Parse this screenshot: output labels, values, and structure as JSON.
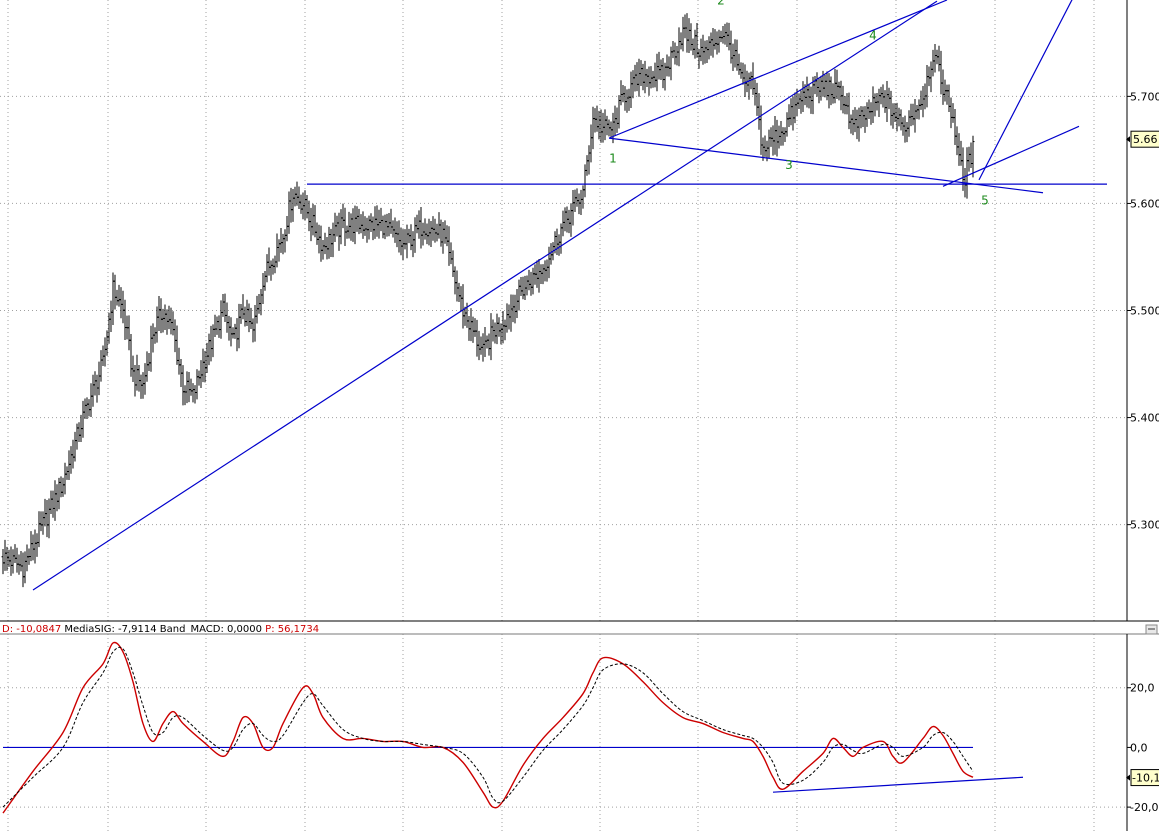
{
  "chart_data": [
    {
      "type": "ohlc",
      "ylim": [
        5.21,
        5.79
      ],
      "y_ticks": [
        5.3,
        5.4,
        5.5,
        5.6,
        5.7
      ],
      "y_tick_labels": [
        "5.300",
        "5.400",
        "5.500",
        "5.600",
        "5.700"
      ],
      "last_value_label": "5.66",
      "last_value": 5.66,
      "grid": true,
      "bar_color": "#000000",
      "line_color": "#0000cc",
      "wave_label_color": "#1c8a1c",
      "anchors": [
        [
          0,
          5.27
        ],
        [
          10,
          5.26
        ],
        [
          20,
          5.3
        ],
        [
          30,
          5.34
        ],
        [
          40,
          5.4
        ],
        [
          50,
          5.45
        ],
        [
          55,
          5.52
        ],
        [
          60,
          5.5
        ],
        [
          65,
          5.44
        ],
        [
          70,
          5.43
        ],
        [
          75,
          5.48
        ],
        [
          80,
          5.5
        ],
        [
          85,
          5.48
        ],
        [
          90,
          5.43
        ],
        [
          95,
          5.42
        ],
        [
          100,
          5.45
        ],
        [
          110,
          5.5
        ],
        [
          115,
          5.47
        ],
        [
          120,
          5.5
        ],
        [
          125,
          5.48
        ],
        [
          130,
          5.53
        ],
        [
          140,
          5.57
        ],
        [
          145,
          5.61
        ],
        [
          150,
          5.6
        ],
        [
          155,
          5.58
        ],
        [
          160,
          5.56
        ],
        [
          170,
          5.58
        ],
        [
          180,
          5.58
        ],
        [
          190,
          5.58
        ],
        [
          200,
          5.56
        ],
        [
          210,
          5.58
        ],
        [
          220,
          5.57
        ],
        [
          230,
          5.5
        ],
        [
          240,
          5.46
        ],
        [
          245,
          5.48
        ],
        [
          250,
          5.49
        ],
        [
          260,
          5.52
        ],
        [
          270,
          5.54
        ],
        [
          280,
          5.58
        ],
        [
          290,
          5.61
        ],
        [
          295,
          5.68
        ],
        [
          300,
          5.67
        ],
        [
          305,
          5.67
        ],
        [
          310,
          5.7
        ],
        [
          320,
          5.72
        ],
        [
          330,
          5.72
        ],
        [
          340,
          5.76
        ],
        [
          350,
          5.74
        ],
        [
          360,
          5.76
        ],
        [
          365,
          5.74
        ],
        [
          370,
          5.71
        ],
        [
          375,
          5.71
        ],
        [
          380,
          5.65
        ],
        [
          385,
          5.66
        ],
        [
          390,
          5.67
        ],
        [
          400,
          5.7
        ],
        [
          410,
          5.71
        ],
        [
          420,
          5.7
        ],
        [
          425,
          5.67
        ],
        [
          430,
          5.68
        ],
        [
          440,
          5.7
        ],
        [
          450,
          5.67
        ],
        [
          460,
          5.7
        ],
        [
          465,
          5.74
        ],
        [
          470,
          5.71
        ],
        [
          475,
          5.68
        ],
        [
          480,
          5.62
        ],
        [
          485,
          5.65
        ]
      ],
      "trend_lines": [
        {
          "from": [
            15,
            5.239
          ],
          "to": [
            467,
            5.789
          ]
        },
        {
          "from": [
            152,
            5.618
          ],
          "to": [
            552,
            5.618
          ]
        },
        {
          "from": [
            303,
            5.661
          ],
          "to": [
            472,
            5.79
          ]
        },
        {
          "from": [
            303,
            5.661
          ],
          "to": [
            520,
            5.61
          ]
        },
        {
          "from": [
            488,
            5.622
          ],
          "to": [
            535,
            5.792
          ]
        },
        {
          "from": [
            470,
            5.616
          ],
          "to": [
            538,
            5.672
          ]
        }
      ],
      "wave_labels": [
        {
          "text": "1",
          "x": 305,
          "y": 5.638
        },
        {
          "text": "2",
          "x": 359,
          "y": 5.786
        },
        {
          "text": "3",
          "x": 393,
          "y": 5.632
        },
        {
          "text": "4",
          "x": 435,
          "y": 5.753
        },
        {
          "text": "5",
          "x": 491,
          "y": 5.599
        }
      ]
    },
    {
      "type": "line",
      "ylim": [
        -28,
        38
      ],
      "y_ticks": [
        -20,
        0,
        20
      ],
      "y_tick_labels": [
        "-20,0",
        "0,0",
        "20,0"
      ],
      "last_value_label": "-10,1",
      "last_value": -10.1,
      "zero_line": 0,
      "grid": true,
      "legend": {
        "placement": "top-left",
        "entries": [
          {
            "text": "D: -10,0847",
            "color": "#cc0000"
          },
          {
            "text": "MediaSIG: -7,9114",
            "color": "#000000"
          },
          {
            "text": "Band_MACD: 0,0000",
            "color": "#000000"
          },
          {
            "text": "P: 56,1734",
            "color": "#cc0000"
          }
        ]
      },
      "series": [
        {
          "style": "solid",
          "color": "#cc0000",
          "points": [
            [
              0,
              -22
            ],
            [
              15,
              -8
            ],
            [
              30,
              5
            ],
            [
              40,
              20
            ],
            [
              50,
              28
            ],
            [
              55,
              35
            ],
            [
              60,
              32
            ],
            [
              65,
              22
            ],
            [
              70,
              8
            ],
            [
              75,
              2
            ],
            [
              80,
              8
            ],
            [
              85,
              12
            ],
            [
              90,
              8
            ],
            [
              100,
              2
            ],
            [
              110,
              -3
            ],
            [
              115,
              2
            ],
            [
              120,
              10
            ],
            [
              125,
              8
            ],
            [
              130,
              0
            ],
            [
              135,
              0
            ],
            [
              140,
              8
            ],
            [
              150,
              20
            ],
            [
              155,
              18
            ],
            [
              160,
              10
            ],
            [
              170,
              3
            ],
            [
              180,
              3
            ],
            [
              190,
              2
            ],
            [
              200,
              2
            ],
            [
              210,
              0
            ],
            [
              220,
              0
            ],
            [
              230,
              -5
            ],
            [
              240,
              -15
            ],
            [
              245,
              -20
            ],
            [
              250,
              -18
            ],
            [
              260,
              -6
            ],
            [
              270,
              3
            ],
            [
              280,
              10
            ],
            [
              290,
              18
            ],
            [
              295,
              25
            ],
            [
              300,
              30
            ],
            [
              310,
              28
            ],
            [
              320,
              22
            ],
            [
              330,
              15
            ],
            [
              340,
              10
            ],
            [
              350,
              8
            ],
            [
              360,
              5
            ],
            [
              370,
              3
            ],
            [
              375,
              2
            ],
            [
              380,
              -3
            ],
            [
              385,
              -10
            ],
            [
              390,
              -14
            ],
            [
              400,
              -8
            ],
            [
              410,
              -2
            ],
            [
              415,
              3
            ],
            [
              420,
              0
            ],
            [
              425,
              -3
            ],
            [
              430,
              0
            ],
            [
              440,
              2
            ],
            [
              445,
              -3
            ],
            [
              450,
              -5
            ],
            [
              460,
              3
            ],
            [
              465,
              7
            ],
            [
              470,
              4
            ],
            [
              475,
              -2
            ],
            [
              480,
              -8
            ],
            [
              485,
              -10
            ]
          ]
        },
        {
          "style": "dashed",
          "color": "#000000",
          "points": [
            [
              0,
              -20
            ],
            [
              15,
              -10
            ],
            [
              30,
              0
            ],
            [
              40,
              15
            ],
            [
              50,
              25
            ],
            [
              55,
              32
            ],
            [
              60,
              33
            ],
            [
              65,
              25
            ],
            [
              70,
              14
            ],
            [
              75,
              5
            ],
            [
              80,
              5
            ],
            [
              85,
              10
            ],
            [
              90,
              10
            ],
            [
              100,
              4
            ],
            [
              110,
              -1
            ],
            [
              115,
              0
            ],
            [
              120,
              6
            ],
            [
              125,
              8
            ],
            [
              130,
              4
            ],
            [
              135,
              2
            ],
            [
              140,
              4
            ],
            [
              150,
              15
            ],
            [
              155,
              18
            ],
            [
              160,
              14
            ],
            [
              170,
              6
            ],
            [
              180,
              3
            ],
            [
              190,
              2
            ],
            [
              200,
              2
            ],
            [
              210,
              1
            ],
            [
              220,
              0
            ],
            [
              230,
              -2
            ],
            [
              240,
              -10
            ],
            [
              245,
              -17
            ],
            [
              250,
              -18
            ],
            [
              260,
              -10
            ],
            [
              270,
              -1
            ],
            [
              280,
              6
            ],
            [
              290,
              14
            ],
            [
              295,
              20
            ],
            [
              300,
              26
            ],
            [
              310,
              28
            ],
            [
              320,
              25
            ],
            [
              330,
              18
            ],
            [
              340,
              12
            ],
            [
              350,
              9
            ],
            [
              360,
              6
            ],
            [
              370,
              4
            ],
            [
              375,
              3
            ],
            [
              380,
              0
            ],
            [
              385,
              -5
            ],
            [
              390,
              -12
            ],
            [
              400,
              -11
            ],
            [
              410,
              -5
            ],
            [
              415,
              0
            ],
            [
              420,
              1
            ],
            [
              425,
              -1
            ],
            [
              430,
              -2
            ],
            [
              440,
              1
            ],
            [
              445,
              0
            ],
            [
              450,
              -3
            ],
            [
              460,
              0
            ],
            [
              465,
              4
            ],
            [
              470,
              5
            ],
            [
              475,
              2
            ],
            [
              480,
              -3
            ],
            [
              485,
              -8
            ]
          ]
        }
      ],
      "trend_lines": [
        {
          "from": [
            385,
            -15
          ],
          "to": [
            510,
            -10
          ]
        },
        {
          "from": [
            0,
            0
          ],
          "to": [
            485,
            0
          ]
        }
      ]
    }
  ]
}
